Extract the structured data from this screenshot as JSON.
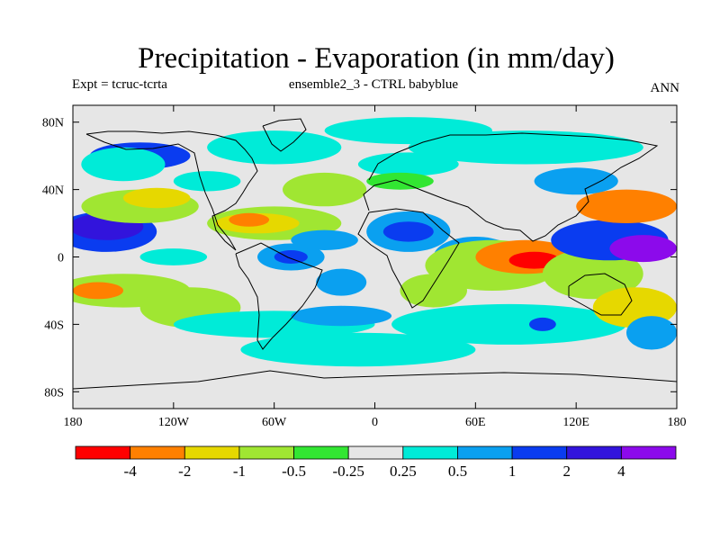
{
  "chart_data": {
    "type": "heatmap",
    "title": "Precipitation - Evaporation (in mm/day)",
    "subtitle_left": "Expt = tcruc-tcrta",
    "subtitle_center": "ensemble2_3 - CTRL babyblue",
    "subtitle_right": "ANN",
    "x_axis": {
      "range": [
        -180,
        180
      ],
      "ticks": [
        -180,
        -120,
        -60,
        0,
        60,
        120,
        180
      ],
      "tick_labels": [
        "180",
        "120W",
        "60W",
        "0",
        "60E",
        "120E",
        "180"
      ]
    },
    "y_axis": {
      "range": [
        -90,
        90
      ],
      "ticks": [
        80,
        40,
        0,
        -40,
        -80
      ],
      "tick_labels": [
        "80N",
        "40N",
        "0",
        "40S",
        "80S"
      ]
    },
    "colorbar": {
      "labels": [
        "-4",
        "-2",
        "-1",
        "-0.5",
        "-0.25",
        "0.25",
        "0.5",
        "1",
        "2",
        "4"
      ],
      "colors": [
        "#ff0000",
        "#ff8000",
        "#e6d800",
        "#a0e632",
        "#32e632",
        "#e6e6e6",
        "#00ebd8",
        "#0aa0f0",
        "#0a3cf0",
        "#3214dc",
        "#8c0aeb"
      ]
    },
    "regions": [
      {
        "lon": -160,
        "lat": 15,
        "rx": 30,
        "ry": 12,
        "level": 8
      },
      {
        "lon": -160,
        "lat": 18,
        "rx": 22,
        "ry": 8,
        "level": 9
      },
      {
        "lon": -140,
        "lat": 30,
        "rx": 35,
        "ry": 10,
        "level": 3
      },
      {
        "lon": -130,
        "lat": 35,
        "rx": 20,
        "ry": 6,
        "level": 2
      },
      {
        "lon": -150,
        "lat": -20,
        "rx": 40,
        "ry": 10,
        "level": 3
      },
      {
        "lon": -165,
        "lat": -20,
        "rx": 15,
        "ry": 5,
        "level": 1
      },
      {
        "lon": -140,
        "lat": 60,
        "rx": 30,
        "ry": 8,
        "level": 8
      },
      {
        "lon": -150,
        "lat": 55,
        "rx": 25,
        "ry": 10,
        "level": 6
      },
      {
        "lon": -110,
        "lat": -30,
        "rx": 30,
        "ry": 12,
        "level": 3
      },
      {
        "lon": -120,
        "lat": 0,
        "rx": 20,
        "ry": 5,
        "level": 6
      },
      {
        "lon": -60,
        "lat": 20,
        "rx": 40,
        "ry": 10,
        "level": 3
      },
      {
        "lon": -70,
        "lat": 20,
        "rx": 25,
        "ry": 6,
        "level": 2
      },
      {
        "lon": -75,
        "lat": 22,
        "rx": 12,
        "ry": 4,
        "level": 1
      },
      {
        "lon": -50,
        "lat": 0,
        "rx": 20,
        "ry": 8,
        "level": 7
      },
      {
        "lon": -50,
        "lat": 0,
        "rx": 10,
        "ry": 4,
        "level": 8
      },
      {
        "lon": -30,
        "lat": 40,
        "rx": 25,
        "ry": 10,
        "level": 3
      },
      {
        "lon": -30,
        "lat": 10,
        "rx": 20,
        "ry": 6,
        "level": 7
      },
      {
        "lon": -20,
        "lat": -15,
        "rx": 15,
        "ry": 8,
        "level": 7
      },
      {
        "lon": -60,
        "lat": -40,
        "rx": 60,
        "ry": 8,
        "level": 6
      },
      {
        "lon": -10,
        "lat": -55,
        "rx": 70,
        "ry": 10,
        "level": 6
      },
      {
        "lon": -60,
        "lat": 65,
        "rx": 40,
        "ry": 10,
        "level": 6
      },
      {
        "lon": 20,
        "lat": 75,
        "rx": 50,
        "ry": 8,
        "level": 6
      },
      {
        "lon": 20,
        "lat": 55,
        "rx": 30,
        "ry": 7,
        "level": 6
      },
      {
        "lon": 15,
        "lat": 45,
        "rx": 20,
        "ry": 5,
        "level": 4
      },
      {
        "lon": 20,
        "lat": 15,
        "rx": 25,
        "ry": 12,
        "level": 7
      },
      {
        "lon": 20,
        "lat": 15,
        "rx": 15,
        "ry": 6,
        "level": 8
      },
      {
        "lon": 35,
        "lat": -20,
        "rx": 20,
        "ry": 10,
        "level": 3
      },
      {
        "lon": 60,
        "lat": 0,
        "rx": 25,
        "ry": 12,
        "level": 7
      },
      {
        "lon": 70,
        "lat": -5,
        "rx": 40,
        "ry": 15,
        "level": 3
      },
      {
        "lon": 90,
        "lat": 0,
        "rx": 30,
        "ry": 10,
        "level": 1
      },
      {
        "lon": 95,
        "lat": -2,
        "rx": 15,
        "ry": 5,
        "level": 0
      },
      {
        "lon": 130,
        "lat": -10,
        "rx": 30,
        "ry": 15,
        "level": 3
      },
      {
        "lon": 140,
        "lat": 10,
        "rx": 35,
        "ry": 12,
        "level": 8
      },
      {
        "lon": 160,
        "lat": 5,
        "rx": 20,
        "ry": 8,
        "level": 10
      },
      {
        "lon": 150,
        "lat": 30,
        "rx": 30,
        "ry": 10,
        "level": 1
      },
      {
        "lon": 120,
        "lat": 45,
        "rx": 25,
        "ry": 8,
        "level": 7
      },
      {
        "lon": 80,
        "lat": -40,
        "rx": 70,
        "ry": 12,
        "level": 6
      },
      {
        "lon": 100,
        "lat": -40,
        "rx": 8,
        "ry": 4,
        "level": 8
      },
      {
        "lon": 155,
        "lat": -30,
        "rx": 25,
        "ry": 12,
        "level": 2
      },
      {
        "lon": 165,
        "lat": -45,
        "rx": 15,
        "ry": 10,
        "level": 7
      },
      {
        "lon": 90,
        "lat": 65,
        "rx": 70,
        "ry": 10,
        "level": 6
      },
      {
        "lon": -100,
        "lat": 45,
        "rx": 20,
        "ry": 6,
        "level": 6
      },
      {
        "lon": -20,
        "lat": -35,
        "rx": 30,
        "ry": 6,
        "level": 7
      }
    ]
  }
}
